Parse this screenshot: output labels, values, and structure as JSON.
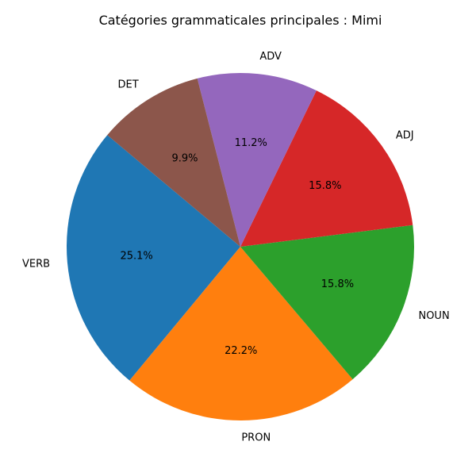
{
  "chart_data": {
    "type": "pie",
    "title": "Catégories grammaticales principales : Mimi",
    "categories": [
      "VERB",
      "PRON",
      "NOUN",
      "ADJ",
      "ADV",
      "DET"
    ],
    "values": [
      25.1,
      22.2,
      15.8,
      15.8,
      11.2,
      9.9
    ],
    "value_labels": [
      "25.1%",
      "22.2%",
      "15.8%",
      "15.8%",
      "11.2%",
      "9.9%"
    ],
    "colors": [
      "#1f77b4",
      "#ff7f0e",
      "#2ca02c",
      "#d62728",
      "#9467bd",
      "#8c564b"
    ],
    "start_angle_deg": 140,
    "direction": "counterclockwise",
    "legend": "none"
  }
}
